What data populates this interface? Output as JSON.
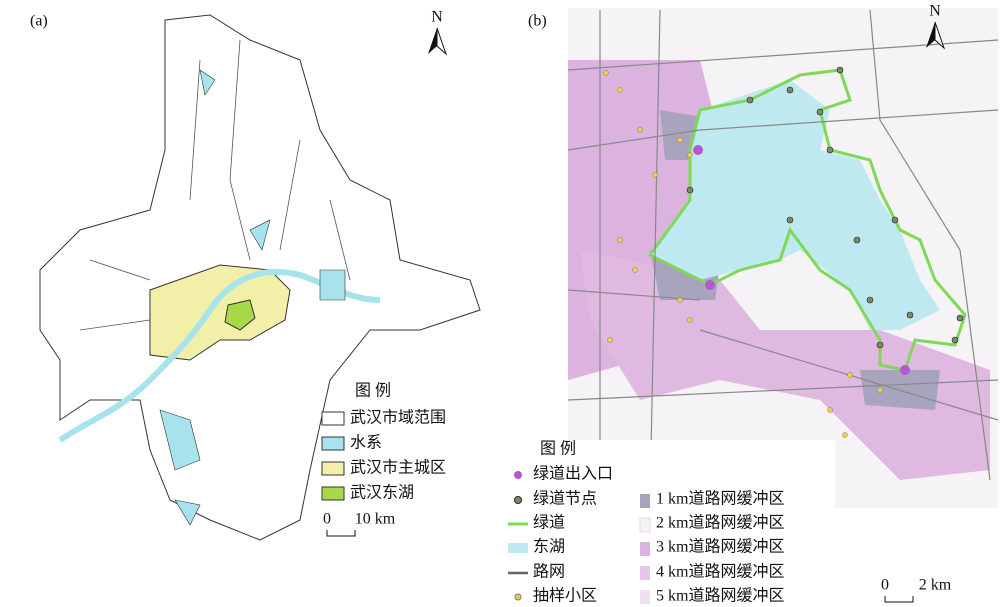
{
  "panel_a": {
    "label": "(a)",
    "north": "N",
    "legend": {
      "title": "图 例",
      "items": [
        "武汉市域范围",
        "水系",
        "武汉市主城区",
        "武汉东湖"
      ]
    },
    "scale": {
      "start": "0",
      "end": "10 km"
    }
  },
  "panel_b": {
    "label": "(b)",
    "north": "N",
    "legend": {
      "title": "图 例",
      "items": [
        "绿道出入口",
        "绿道节点",
        "绿道",
        "东湖",
        "路网",
        "抽样小区",
        "1 km道路网缓冲区",
        "2 km道路网缓冲区",
        "3 km道路网缓冲区",
        "4 km道路网缓冲区",
        "5 km道路网缓冲区"
      ]
    },
    "scale": {
      "start": "0",
      "end": "2 km"
    }
  }
}
